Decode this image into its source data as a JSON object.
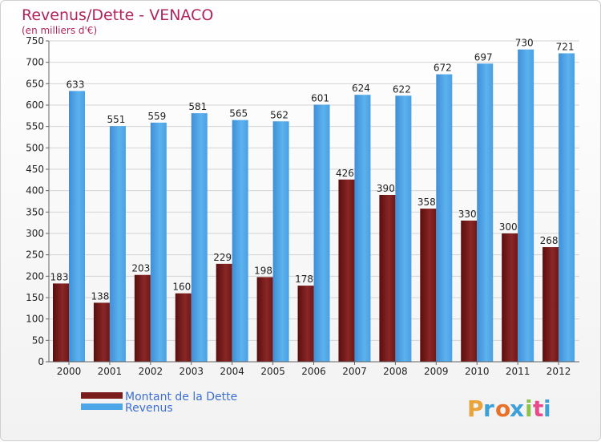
{
  "chart_data": {
    "type": "bar",
    "title": "Revenus/Dette - VENACO",
    "subtitle": "(en milliers d'€)",
    "categories": [
      "2000",
      "2001",
      "2002",
      "2003",
      "2004",
      "2005",
      "2006",
      "2007",
      "2008",
      "2009",
      "2010",
      "2011",
      "2012"
    ],
    "series": [
      {
        "name": "Montant de la Dette",
        "color": "#7a1c1c",
        "values": [
          183,
          138,
          203,
          160,
          229,
          198,
          178,
          426,
          390,
          358,
          330,
          300,
          268
        ]
      },
      {
        "name": "Revenus",
        "color": "#4da6e8",
        "values": [
          633,
          551,
          559,
          581,
          565,
          562,
          601,
          624,
          622,
          672,
          697,
          730,
          721
        ]
      }
    ],
    "ylim": [
      0,
      750
    ],
    "yticks": [
      0,
      50,
      100,
      150,
      200,
      250,
      300,
      350,
      400,
      450,
      500,
      550,
      600,
      650,
      700,
      750
    ],
    "grid": true,
    "legend": "bottom-left"
  },
  "logo": {
    "letters": [
      "P",
      "r",
      "o",
      "x",
      "i",
      "t",
      "i"
    ],
    "colors": [
      "#e8a33a",
      "#3da1d8",
      "#e8712a",
      "#3da1d8",
      "#8bc34a",
      "#e84a8a",
      "#3da1d8"
    ]
  }
}
